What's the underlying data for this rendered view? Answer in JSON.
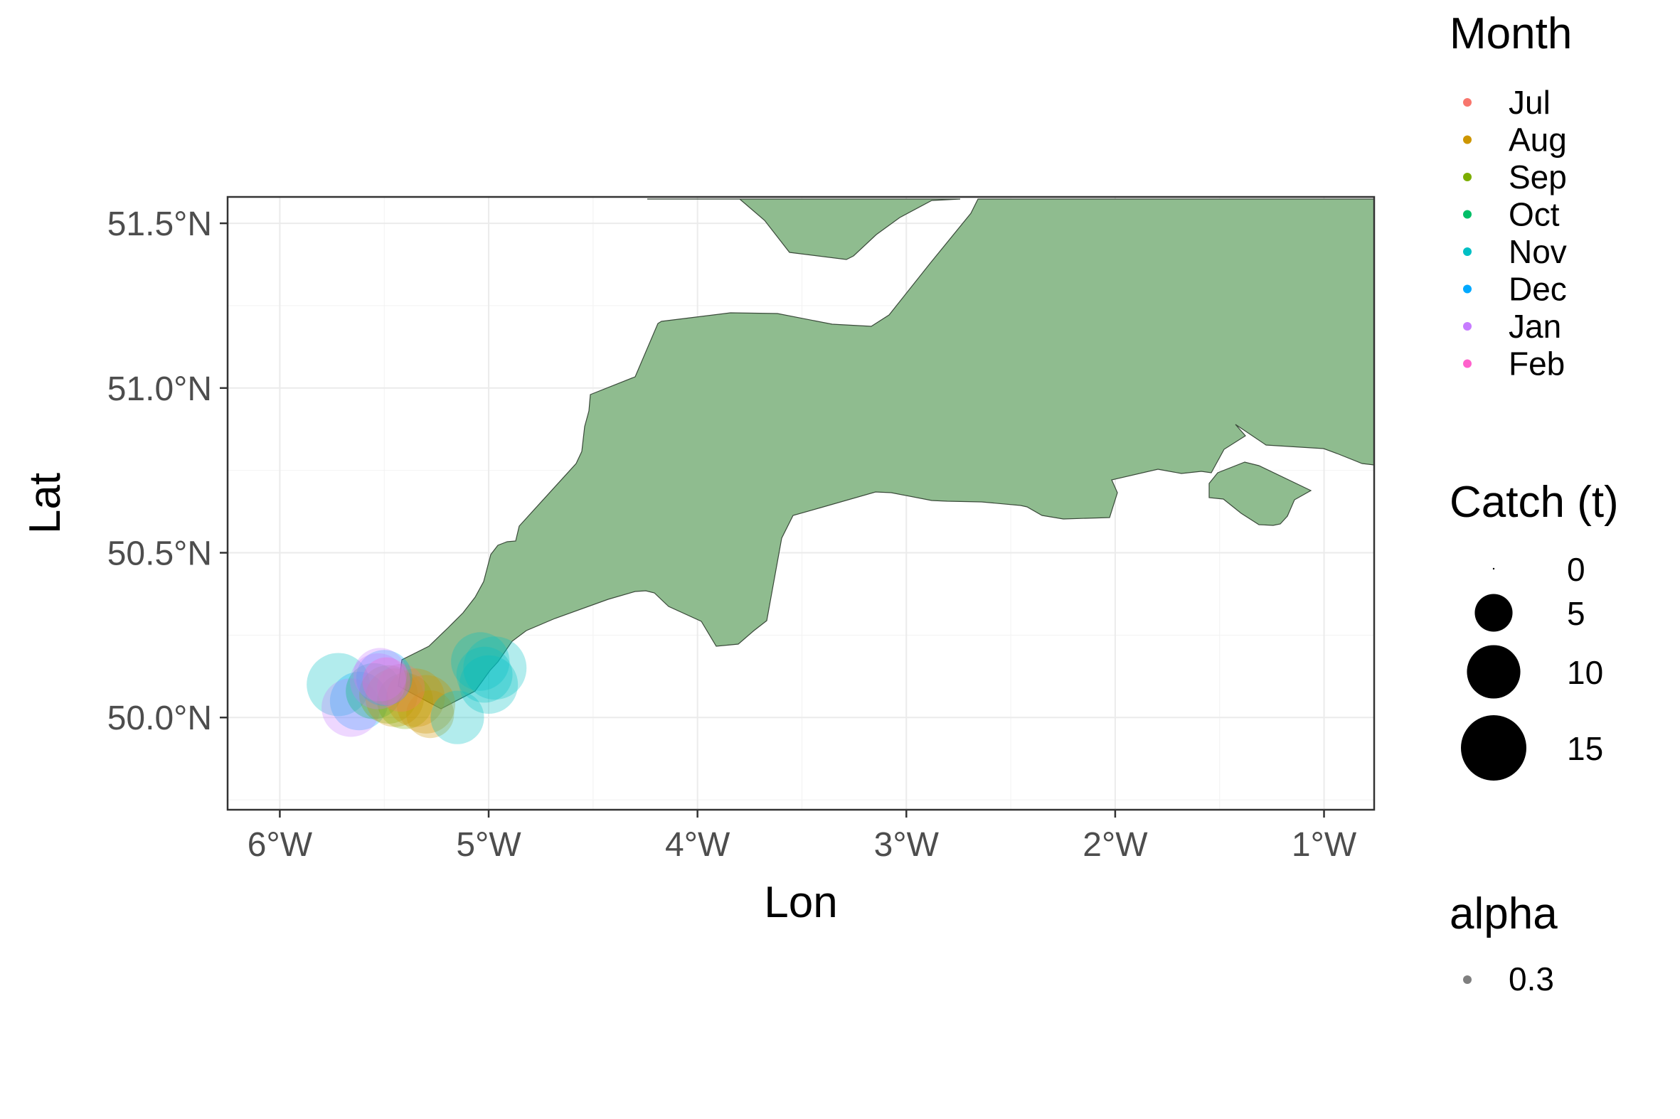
{
  "chart_data": {
    "type": "scatter",
    "xlabel": "Lon",
    "ylabel": "Lat",
    "xlim": [
      -6.25,
      -0.76
    ],
    "ylim": [
      49.72,
      51.58
    ],
    "x_ticks": [
      {
        "value": -6,
        "label": "6°W"
      },
      {
        "value": -5,
        "label": "5°W"
      },
      {
        "value": -4,
        "label": "4°W"
      },
      {
        "value": -3,
        "label": "3°W"
      },
      {
        "value": -2,
        "label": "2°W"
      },
      {
        "value": -1,
        "label": "1°W"
      }
    ],
    "y_ticks": [
      {
        "value": 50.0,
        "label": "50.0°N"
      },
      {
        "value": 50.5,
        "label": "50.5°N"
      },
      {
        "value": 51.0,
        "label": "51.0°N"
      },
      {
        "value": 51.5,
        "label": "51.5°N"
      }
    ],
    "grid": true,
    "land_color": "#8fbc8f",
    "point_alpha": 0.3,
    "months": [
      {
        "name": "Jul",
        "color": "#f8766d"
      },
      {
        "name": "Aug",
        "color": "#cd9600"
      },
      {
        "name": "Sep",
        "color": "#7cae00"
      },
      {
        "name": "Oct",
        "color": "#00be67"
      },
      {
        "name": "Nov",
        "color": "#00bfc4"
      },
      {
        "name": "Dec",
        "color": "#00a9ff"
      },
      {
        "name": "Jan",
        "color": "#c77cff"
      },
      {
        "name": "Feb",
        "color": "#ff61cc"
      }
    ],
    "points": [
      {
        "lon": -5.72,
        "lat": 50.1,
        "month": "Nov",
        "catch": 14
      },
      {
        "lon": -5.62,
        "lat": 50.05,
        "month": "Dec",
        "catch": 12
      },
      {
        "lon": -5.66,
        "lat": 50.03,
        "month": "Jan",
        "catch": 12
      },
      {
        "lon": -5.55,
        "lat": 50.08,
        "month": "Oct",
        "catch": 11
      },
      {
        "lon": -5.48,
        "lat": 50.07,
        "month": "Sep",
        "catch": 12
      },
      {
        "lon": -5.45,
        "lat": 50.06,
        "month": "Aug",
        "catch": 12
      },
      {
        "lon": -5.4,
        "lat": 50.05,
        "month": "Sep",
        "catch": 11
      },
      {
        "lon": -5.35,
        "lat": 50.06,
        "month": "Aug",
        "catch": 12
      },
      {
        "lon": -5.3,
        "lat": 50.04,
        "month": "Aug",
        "catch": 12
      },
      {
        "lon": -5.28,
        "lat": 50.01,
        "month": "Aug",
        "catch": 8
      },
      {
        "lon": -5.42,
        "lat": 50.09,
        "month": "Jul",
        "catch": 8
      },
      {
        "lon": -5.5,
        "lat": 50.12,
        "month": "Dec",
        "catch": 11
      },
      {
        "lon": -5.53,
        "lat": 50.11,
        "month": "Jan",
        "catch": 11
      },
      {
        "lon": -5.52,
        "lat": 50.13,
        "month": "Jan",
        "catch": 10
      },
      {
        "lon": -5.49,
        "lat": 50.11,
        "month": "Feb",
        "catch": 8
      },
      {
        "lon": -5.15,
        "lat": 50.0,
        "month": "Nov",
        "catch": 10
      },
      {
        "lon": -5.0,
        "lat": 50.1,
        "month": "Nov",
        "catch": 12
      },
      {
        "lon": -5.04,
        "lat": 50.17,
        "month": "Nov",
        "catch": 12
      },
      {
        "lon": -4.97,
        "lat": 50.15,
        "month": "Nov",
        "catch": 14
      },
      {
        "lon": -5.02,
        "lat": 50.13,
        "month": "Nov",
        "catch": 11
      }
    ]
  },
  "legend": {
    "month_title": "Month",
    "catch_title": "Catch (t)",
    "catch_keys": [
      {
        "value": 0,
        "label": "0"
      },
      {
        "value": 5,
        "label": "5"
      },
      {
        "value": 10,
        "label": "10"
      },
      {
        "value": 15,
        "label": "15"
      }
    ],
    "alpha_title": "alpha",
    "alpha_label": "0.3"
  }
}
